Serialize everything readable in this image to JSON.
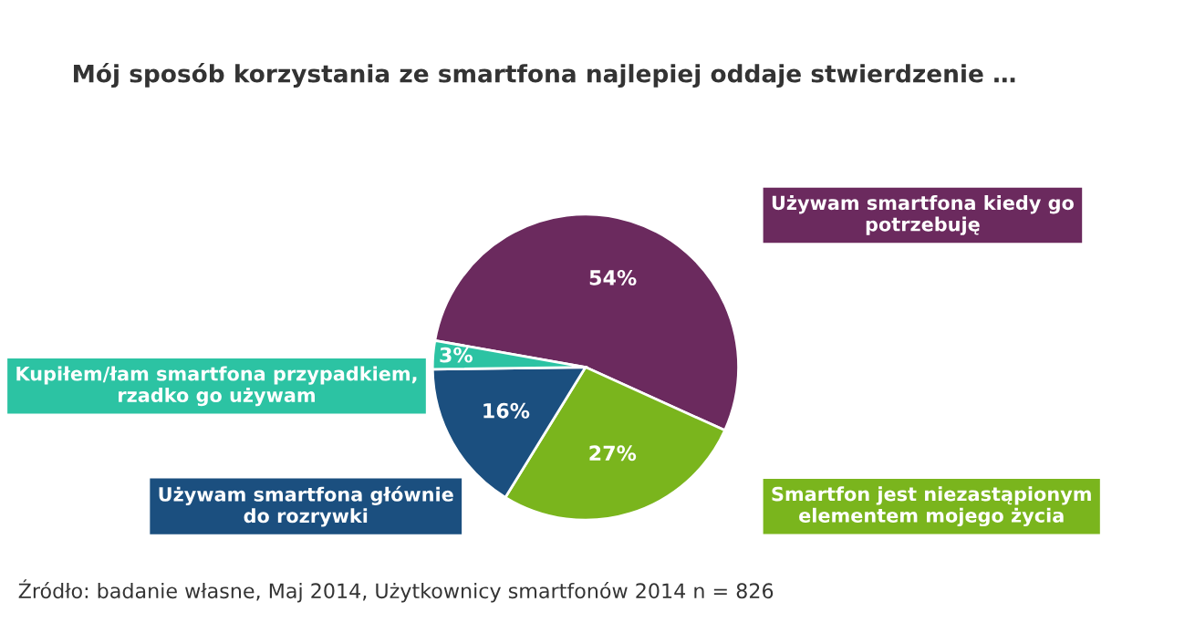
{
  "chart_data": {
    "type": "pie",
    "title": "Mój sposób korzystania ze smartfona najlepiej oddaje stwierdzenie …",
    "categories": [
      "Używam smartfona kiedy go\npotrzebuję",
      "Smartfon jest niezastąpionym\nelementem mojego życia",
      "Używam smartfona głównie\ndo rozrywki",
      "Kupiłem/łam smartfona przypadkiem,\nrzadko go używam"
    ],
    "values": [
      54,
      27,
      16,
      3
    ],
    "value_labels": [
      "54%",
      "27%",
      "16%",
      "3%"
    ],
    "colors": [
      "#6b2a5e",
      "#7ab51d",
      "#1b4f7f",
      "#2cc3a3"
    ],
    "legend": false,
    "annotations": [
      "Źródło: badanie własne, Maj 2014, Użytkownicy smartfonów 2014 n = 826"
    ]
  }
}
